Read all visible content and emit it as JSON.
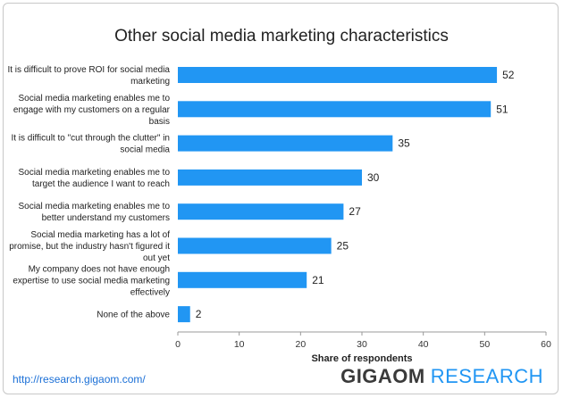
{
  "chart_data": {
    "type": "bar",
    "orientation": "horizontal",
    "title": "Other social media marketing characteristics",
    "xlabel": "Share of respondents",
    "ylabel": "",
    "xlim": [
      0,
      60
    ],
    "ticks": [
      0,
      10,
      20,
      30,
      40,
      50,
      60
    ],
    "grid": false,
    "bar_color": "#2196f3",
    "categories": [
      [
        "It is difficult to prove ROI for social media",
        "marketing"
      ],
      [
        "Social media marketing enables me to",
        "engage with my customers on a regular",
        "basis"
      ],
      [
        "It is difficult to \"cut through the clutter\" in",
        "social media"
      ],
      [
        "Social media marketing enables me to",
        "target the audience I want to reach"
      ],
      [
        "Social media marketing enables me to",
        "better understand my customers"
      ],
      [
        "Social media marketing has a lot of",
        "promise, but the industry hasn't figured it",
        "out yet"
      ],
      [
        "My company does not have enough",
        "expertise to use social media marketing",
        "effectively"
      ],
      [
        "None of the above"
      ]
    ],
    "values": [
      52,
      51,
      35,
      30,
      27,
      25,
      21,
      2
    ]
  },
  "footer": {
    "source_url": "http://research.gigaom.com/",
    "brand_primary": "GIGAOM",
    "brand_secondary": "RESEARCH"
  }
}
